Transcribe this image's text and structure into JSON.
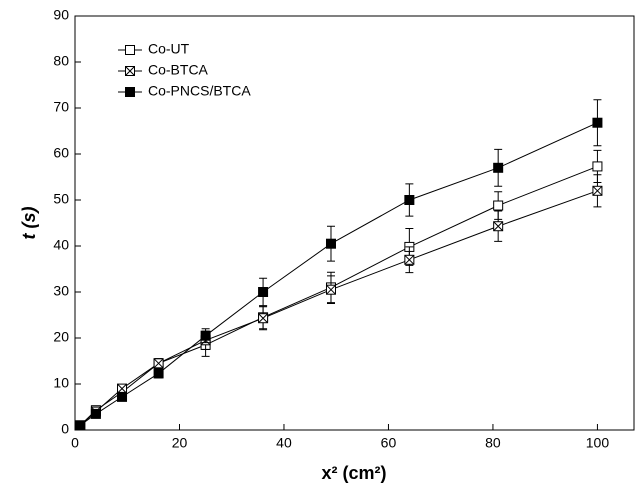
{
  "chart_data": {
    "type": "line",
    "xlabel": "x² (cm²)",
    "ylabel": "t (s)",
    "x": [
      1,
      4,
      9,
      16,
      25,
      36,
      49,
      64,
      81,
      100
    ],
    "series": [
      {
        "name": "Co-UT",
        "color": "#000000",
        "marker": "open-square",
        "values": [
          1,
          4.3,
          8.2,
          14.5,
          18.5,
          24.5,
          31,
          39.8,
          48.8,
          57.3
        ],
        "errors": [
          0.5,
          0.5,
          0.8,
          1,
          2.5,
          2.5,
          3.3,
          4,
          3,
          3.5
        ]
      },
      {
        "name": "Co-BTCA",
        "color": "#000000",
        "marker": "crossed-square",
        "values": [
          1,
          4,
          9,
          14.5,
          19.5,
          24.3,
          30.5,
          37,
          44.3,
          52
        ],
        "errors": [
          0.5,
          0.5,
          0.8,
          1,
          2,
          2.5,
          3,
          2.8,
          3.3,
          3.5
        ]
      },
      {
        "name": "Co-PNCS/BTCA",
        "color": "#000000",
        "marker": "filled-square",
        "values": [
          1,
          3.5,
          7.2,
          12.3,
          20.5,
          30,
          40.5,
          50,
          57,
          66.8
        ],
        "errors": [
          0.5,
          0.5,
          0.8,
          1,
          1.5,
          3,
          3.8,
          3.5,
          4,
          5
        ]
      }
    ],
    "xlim": [
      0,
      107
    ],
    "xticks": [
      0,
      20,
      40,
      60,
      80,
      100
    ],
    "ylim": [
      0,
      90
    ],
    "yticks": [
      0,
      10,
      20,
      30,
      40,
      50,
      60,
      70,
      80,
      90
    ],
    "legend": "upper-left"
  }
}
